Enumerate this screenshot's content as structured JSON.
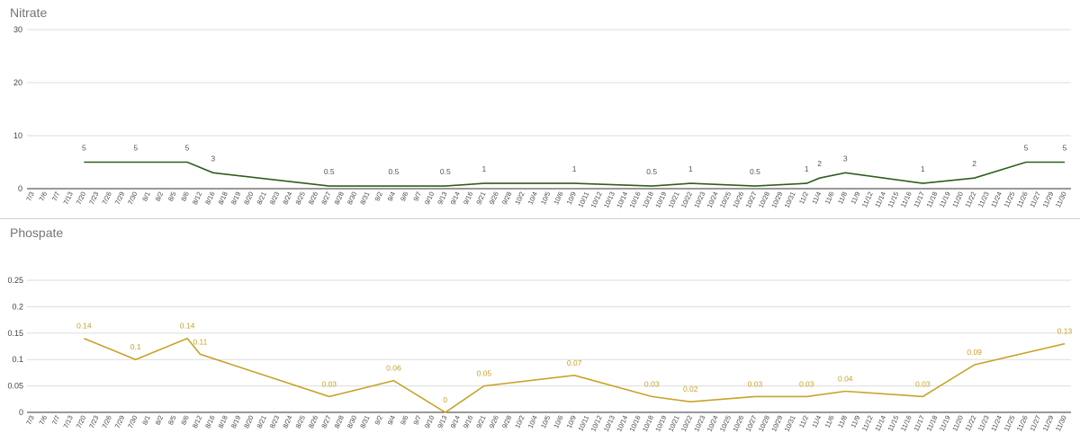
{
  "charts": [
    {
      "title": "Nitrate",
      "chart_data": {
        "type": "line",
        "title": "Nitrate",
        "xlabel": "",
        "ylabel": "",
        "ylim": [
          0,
          30
        ],
        "yticks": [
          0,
          10,
          20,
          30
        ],
        "grid": true,
        "legend": "none",
        "color": "#2e5e1e",
        "categories": [
          "7/3",
          "7/6",
          "7/7",
          "7/13",
          "7/20",
          "7/23",
          "7/26",
          "7/29",
          "7/30",
          "8/1",
          "8/2",
          "8/5",
          "8/6",
          "8/12",
          "8/16",
          "8/18",
          "8/19",
          "8/20",
          "8/21",
          "8/23",
          "8/24",
          "8/25",
          "8/26",
          "8/27",
          "8/28",
          "8/30",
          "8/31",
          "9/2",
          "9/4",
          "9/6",
          "9/7",
          "9/10",
          "9/13",
          "9/14",
          "9/16",
          "9/21",
          "9/26",
          "9/28",
          "10/2",
          "10/4",
          "10/5",
          "10/6",
          "10/9",
          "10/11",
          "10/12",
          "10/13",
          "10/14",
          "10/16",
          "10/18",
          "10/19",
          "10/21",
          "10/22",
          "10/23",
          "10/24",
          "10/25",
          "10/26",
          "10/27",
          "10/28",
          "10/29",
          "10/31",
          "11/2",
          "11/4",
          "11/6",
          "11/8",
          "11/9",
          "11/12",
          "11/14",
          "11/15",
          "11/16",
          "11/17",
          "11/18",
          "11/19",
          "11/20",
          "11/22",
          "11/23",
          "11/24",
          "11/25",
          "11/26",
          "11/27",
          "11/29",
          "11/30"
        ],
        "points": [
          {
            "x": "7/20",
            "y": 5,
            "label": "5"
          },
          {
            "x": "7/30",
            "y": 5,
            "label": "5"
          },
          {
            "x": "8/6",
            "y": 5,
            "label": "5"
          },
          {
            "x": "8/16",
            "y": 3,
            "label": "3"
          },
          {
            "x": "8/27",
            "y": 0.5,
            "label": "0.5"
          },
          {
            "x": "9/4",
            "y": 0.5,
            "label": "0.5"
          },
          {
            "x": "9/13",
            "y": 0.5,
            "label": "0.5"
          },
          {
            "x": "9/21",
            "y": 1,
            "label": "1"
          },
          {
            "x": "10/9",
            "y": 1,
            "label": "1"
          },
          {
            "x": "10/18",
            "y": 0.5,
            "label": "0.5"
          },
          {
            "x": "10/22",
            "y": 1,
            "label": "1"
          },
          {
            "x": "10/27",
            "y": 0.5,
            "label": "0.5"
          },
          {
            "x": "11/2",
            "y": 1,
            "label": "1"
          },
          {
            "x": "11/4",
            "y": 2,
            "label": "2"
          },
          {
            "x": "11/8",
            "y": 3,
            "label": "3"
          },
          {
            "x": "11/17",
            "y": 1,
            "label": "1"
          },
          {
            "x": "11/22",
            "y": 2,
            "label": "2"
          },
          {
            "x": "11/26",
            "y": 5,
            "label": "5"
          },
          {
            "x": "11/30",
            "y": 5,
            "label": "5"
          }
        ]
      }
    },
    {
      "title": "Phospate",
      "chart_data": {
        "type": "line",
        "title": "Phospate",
        "xlabel": "",
        "ylabel": "",
        "ylim": [
          0,
          0.25
        ],
        "yticks": [
          0,
          0.05,
          0.1,
          0.15,
          0.2,
          0.25
        ],
        "grid": true,
        "legend": "none",
        "color": "#c9a227",
        "categories": [
          "7/3",
          "7/6",
          "7/7",
          "7/13",
          "7/20",
          "7/23",
          "7/26",
          "7/29",
          "7/30",
          "8/1",
          "8/2",
          "8/5",
          "8/6",
          "8/12",
          "8/16",
          "8/18",
          "8/19",
          "8/20",
          "8/21",
          "8/23",
          "8/24",
          "8/25",
          "8/26",
          "8/27",
          "8/28",
          "8/30",
          "8/31",
          "9/2",
          "9/4",
          "9/6",
          "9/7",
          "9/10",
          "9/13",
          "9/14",
          "9/16",
          "9/21",
          "9/26",
          "9/28",
          "10/2",
          "10/4",
          "10/5",
          "10/6",
          "10/9",
          "10/11",
          "10/12",
          "10/13",
          "10/14",
          "10/16",
          "10/18",
          "10/19",
          "10/21",
          "10/22",
          "10/23",
          "10/24",
          "10/25",
          "10/26",
          "10/27",
          "10/28",
          "10/29",
          "10/31",
          "11/2",
          "11/4",
          "11/6",
          "11/8",
          "11/9",
          "11/12",
          "11/14",
          "11/15",
          "11/16",
          "11/17",
          "11/18",
          "11/19",
          "11/20",
          "11/22",
          "11/23",
          "11/24",
          "11/25",
          "11/26",
          "11/27",
          "11/29",
          "11/30"
        ],
        "points": [
          {
            "x": "7/20",
            "y": 0.14,
            "label": "0.14"
          },
          {
            "x": "7/30",
            "y": 0.1,
            "label": "0.1"
          },
          {
            "x": "8/6",
            "y": 0.14,
            "label": "0.14"
          },
          {
            "x": "8/12",
            "y": 0.11,
            "label": "0.11"
          },
          {
            "x": "8/27",
            "y": 0.03,
            "label": "0.03"
          },
          {
            "x": "9/4",
            "y": 0.06,
            "label": "0.06"
          },
          {
            "x": "9/13",
            "y": 0,
            "label": "0"
          },
          {
            "x": "9/21",
            "y": 0.05,
            "label": "0.05"
          },
          {
            "x": "10/9",
            "y": 0.07,
            "label": "0.07"
          },
          {
            "x": "10/18",
            "y": 0.03,
            "label": "0.03"
          },
          {
            "x": "10/22",
            "y": 0.02,
            "label": "0.02"
          },
          {
            "x": "10/27",
            "y": 0.03,
            "label": "0.03"
          },
          {
            "x": "11/2",
            "y": 0.03,
            "label": "0.03"
          },
          {
            "x": "11/8",
            "y": 0.04,
            "label": "0.04"
          },
          {
            "x": "11/17",
            "y": 0.03,
            "label": "0.03"
          },
          {
            "x": "11/22",
            "y": 0.09,
            "label": "0.09"
          },
          {
            "x": "11/30",
            "y": 0.13,
            "label": "0.13"
          }
        ]
      }
    }
  ]
}
